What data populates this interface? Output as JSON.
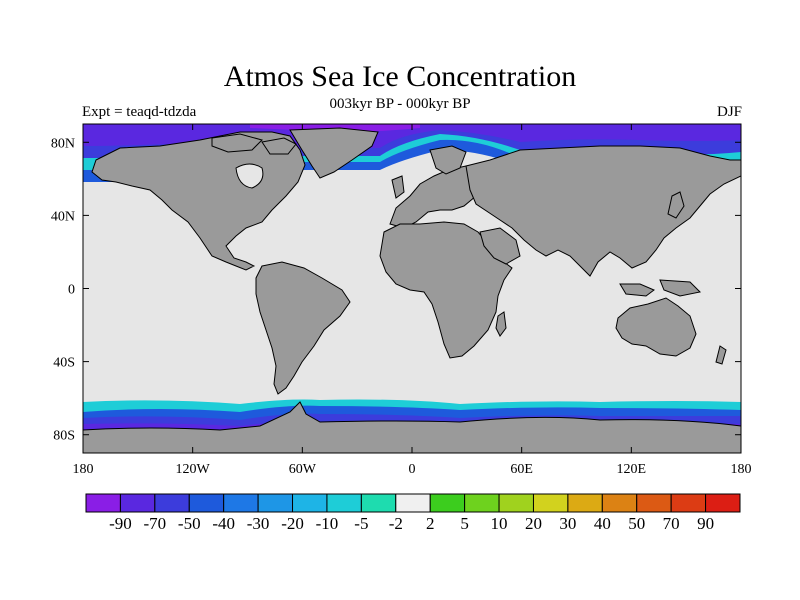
{
  "title": "Atmos Sea Ice Concentration",
  "subtitle": "003kyr BP - 000kyr BP",
  "experiment_label": "Expt = teaqd-tdzda",
  "season_label": "DJF",
  "map": {
    "lon_ticks": [
      "180",
      "120W",
      "60W",
      "0",
      "60E",
      "120E",
      "180"
    ],
    "lat_ticks": [
      "80N",
      "40N",
      "0",
      "40S",
      "80S"
    ],
    "colors": {
      "ocean": "#e6e6e6",
      "land": "#9a9a9a",
      "coast": "#000000"
    }
  },
  "colorbar": {
    "labels": [
      "-90",
      "-70",
      "-50",
      "-40",
      "-30",
      "-20",
      "-10",
      "-5",
      "-2",
      "2",
      "5",
      "10",
      "20",
      "30",
      "40",
      "50",
      "70",
      "90"
    ],
    "colors": [
      "#8a1ee6",
      "#5a28e0",
      "#3c3cdc",
      "#1e5adc",
      "#1e78e6",
      "#1e96e6",
      "#1eb4e6",
      "#1ecdd7",
      "#1edcaf",
      "#f0f0f0",
      "#3ccd1e",
      "#6ed21e",
      "#a0d21e",
      "#d2d21e",
      "#dcaa14",
      "#dc8214",
      "#dc5a14",
      "#dc3c14",
      "#dc1e14"
    ]
  }
}
